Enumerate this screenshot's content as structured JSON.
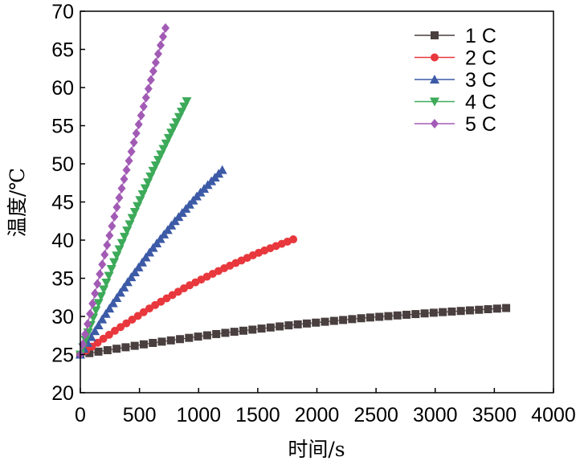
{
  "chart_data": {
    "type": "line",
    "title": "",
    "xlabel": "时间/s",
    "ylabel": "温度/℃",
    "xlim": [
      0,
      4000
    ],
    "ylim": [
      20,
      70
    ],
    "xticks": [
      0,
      500,
      1000,
      1500,
      2000,
      2500,
      3000,
      3500,
      4000
    ],
    "yticks": [
      20,
      25,
      30,
      35,
      40,
      45,
      50,
      55,
      60,
      65,
      70
    ],
    "grid": false,
    "legend_position": "top-right",
    "series": [
      {
        "name": "1 C",
        "color": "#4a3f3f",
        "marker": "square",
        "x_start": 0,
        "x_end": 3600,
        "n": 48,
        "anchors_x": [
          0,
          600,
          1200,
          1800,
          2400,
          3000,
          3600
        ],
        "anchors_y": [
          25,
          26.5,
          27.8,
          28.9,
          29.8,
          30.5,
          31.1
        ]
      },
      {
        "name": "2 C",
        "color": "#e8383d",
        "marker": "circle",
        "x_start": 0,
        "x_end": 1800,
        "n": 38,
        "anchors_x": [
          0,
          300,
          600,
          900,
          1200,
          1500,
          1800
        ],
        "anchors_y": [
          25,
          28.2,
          31.2,
          33.9,
          36.2,
          38.3,
          40.1
        ]
      },
      {
        "name": "3 C",
        "color": "#3c5aa6",
        "marker": "triangle-up",
        "x_start": 0,
        "x_end": 1200,
        "n": 40,
        "anchors_x": [
          0,
          200,
          400,
          600,
          800,
          1000,
          1200
        ],
        "anchors_y": [
          25,
          30.0,
          34.5,
          38.7,
          42.5,
          46.0,
          49.2
        ]
      },
      {
        "name": "4 C",
        "color": "#3daa5a",
        "marker": "triangle-down",
        "x_start": 0,
        "x_end": 900,
        "n": 42,
        "anchors_x": [
          0,
          150,
          300,
          450,
          600,
          750,
          900
        ],
        "anchors_y": [
          25,
          31.6,
          37.7,
          43.3,
          48.6,
          53.5,
          58.2
        ]
      },
      {
        "name": "5 C",
        "color": "#a25bb5",
        "marker": "diamond",
        "x_start": 0,
        "x_end": 720,
        "n": 36,
        "anchors_x": [
          0,
          120,
          240,
          360,
          480,
          600,
          720
        ],
        "anchors_y": [
          25,
          32.8,
          40.2,
          47.4,
          54.4,
          61.2,
          67.8
        ]
      }
    ]
  }
}
